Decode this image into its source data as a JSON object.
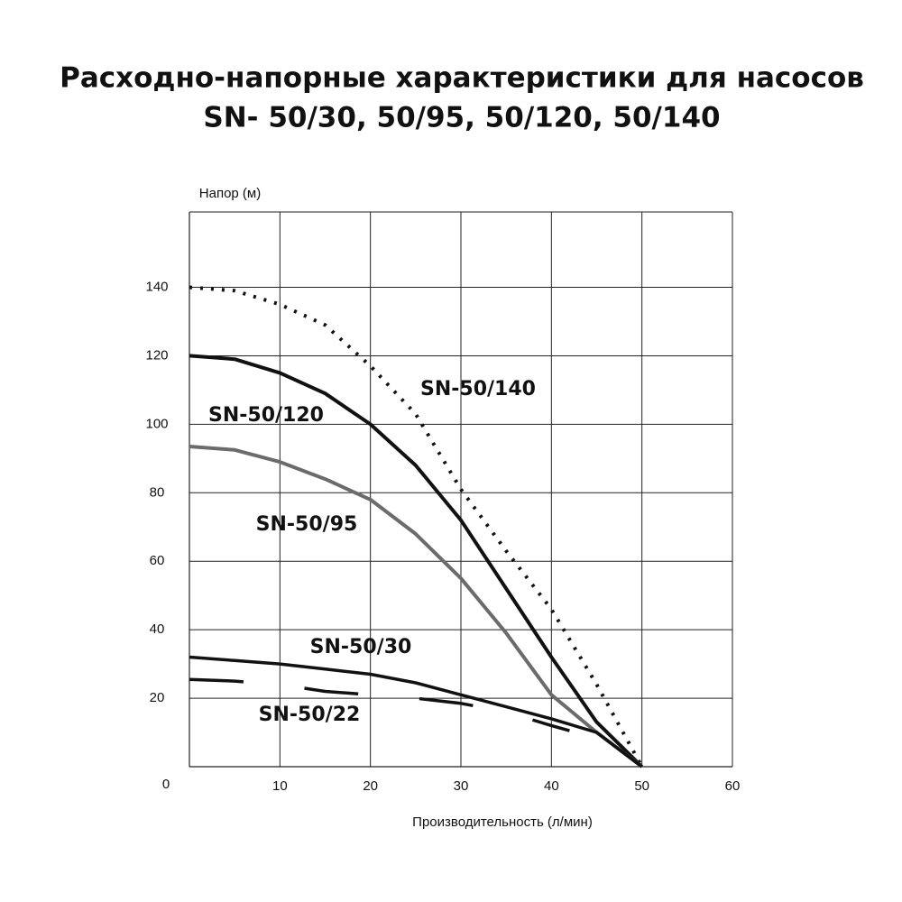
{
  "chart_data": {
    "type": "line",
    "title": "Расходно-напорные характеристики для насосов",
    "subtitle": "SN- 50/30, 50/95, 50/120, 50/140",
    "y_label": "Напор (м)",
    "x_label": "Производительность (л/мин)",
    "xlim": [
      0,
      60
    ],
    "xticks": [
      10,
      20,
      30,
      40,
      50,
      60
    ],
    "ylim": [
      0,
      162
    ],
    "yticks": [
      0,
      20,
      40,
      60,
      80,
      100,
      120,
      140
    ],
    "grid": true,
    "series": [
      {
        "name": "SN-50/140",
        "color": "#111111",
        "style": "dotted",
        "x": [
          0,
          5,
          10,
          15,
          20,
          25,
          30,
          35,
          40,
          45,
          50
        ],
        "values": [
          140,
          139,
          135,
          129,
          117,
          103,
          81,
          63,
          46,
          24,
          0
        ]
      },
      {
        "name": "SN-50/120",
        "color": "#111111",
        "style": "solid",
        "x": [
          0,
          5,
          10,
          15,
          20,
          25,
          30,
          35,
          40,
          45,
          50
        ],
        "values": [
          120,
          119,
          115,
          109,
          100,
          88,
          72,
          52,
          32,
          13,
          0
        ]
      },
      {
        "name": "SN-50/95",
        "color": "#6b6b6b",
        "style": "solid",
        "x": [
          0,
          5,
          10,
          15,
          20,
          25,
          30,
          35,
          40,
          45,
          50
        ],
        "values": [
          93.5,
          92.5,
          89,
          84,
          78,
          68,
          55,
          39,
          21,
          10,
          0
        ]
      },
      {
        "name": "SN-50/30",
        "color": "#111111",
        "style": "thin",
        "x": [
          0,
          5,
          10,
          15,
          20,
          25,
          30,
          35,
          40,
          45,
          50
        ],
        "values": [
          32,
          31,
          30,
          28.5,
          27,
          24.5,
          21,
          17.5,
          14,
          10,
          0
        ]
      },
      {
        "name": "SN-50/22",
        "color": "#111111",
        "style": "dashed",
        "x": [
          0,
          5,
          10,
          15,
          20,
          25,
          30,
          35,
          40,
          42
        ],
        "values": [
          25.5,
          25,
          24,
          22,
          21,
          20,
          18.5,
          16,
          12,
          10.5
        ]
      }
    ]
  }
}
